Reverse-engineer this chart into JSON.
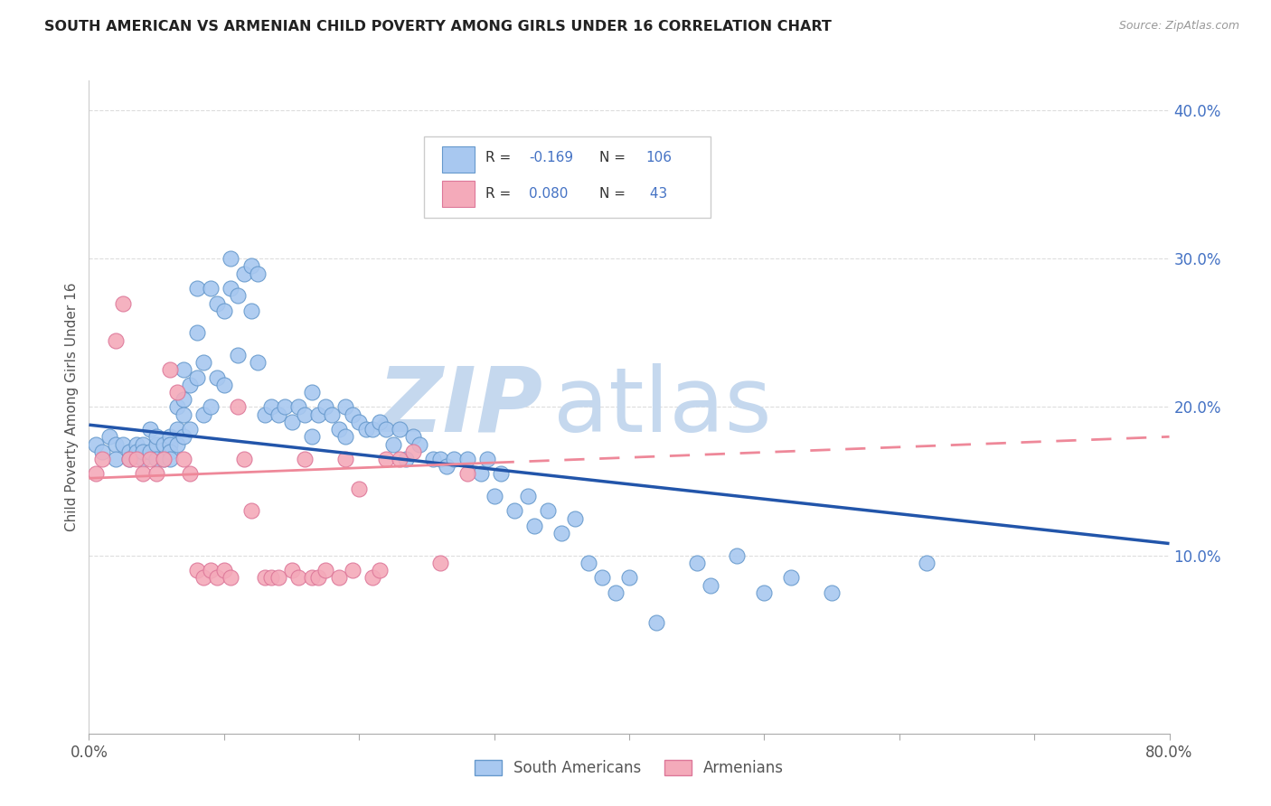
{
  "title": "SOUTH AMERICAN VS ARMENIAN CHILD POVERTY AMONG GIRLS UNDER 16 CORRELATION CHART",
  "source": "Source: ZipAtlas.com",
  "ylabel": "Child Poverty Among Girls Under 16",
  "xlim": [
    0.0,
    0.8
  ],
  "ylim": [
    -0.02,
    0.42
  ],
  "sa_color": "#A8C8F0",
  "sa_edge_color": "#6699CC",
  "arm_color": "#F4AABA",
  "arm_edge_color": "#DD7799",
  "sa_trend_color": "#2255AA",
  "arm_trend_color": "#EE8899",
  "sa_R": -0.169,
  "sa_N": 106,
  "arm_R": 0.08,
  "arm_N": 43,
  "watermark_zip": "ZIP",
  "watermark_atlas": "atlas",
  "watermark_color_zip": "#C5D8EE",
  "watermark_color_atlas": "#C5D8EE",
  "legend_label_sa": "South Americans",
  "legend_label_arm": "Armenians",
  "right_ytick_vals": [
    0.1,
    0.2,
    0.3,
    0.4
  ],
  "right_ytick_labels": [
    "10.0%",
    "20.0%",
    "30.0%",
    "40.0%"
  ],
  "right_tick_color": "#4472C4",
  "grid_color": "#DDDDDD",
  "sa_points_x": [
    0.005,
    0.01,
    0.015,
    0.02,
    0.02,
    0.025,
    0.03,
    0.03,
    0.035,
    0.035,
    0.04,
    0.04,
    0.04,
    0.045,
    0.045,
    0.05,
    0.05,
    0.05,
    0.055,
    0.055,
    0.06,
    0.06,
    0.06,
    0.06,
    0.065,
    0.065,
    0.065,
    0.07,
    0.07,
    0.07,
    0.07,
    0.075,
    0.075,
    0.08,
    0.08,
    0.08,
    0.085,
    0.085,
    0.09,
    0.09,
    0.095,
    0.095,
    0.1,
    0.1,
    0.105,
    0.105,
    0.11,
    0.11,
    0.115,
    0.12,
    0.12,
    0.125,
    0.125,
    0.13,
    0.135,
    0.14,
    0.145,
    0.15,
    0.155,
    0.16,
    0.165,
    0.165,
    0.17,
    0.175,
    0.18,
    0.185,
    0.19,
    0.19,
    0.195,
    0.2,
    0.205,
    0.21,
    0.215,
    0.22,
    0.225,
    0.23,
    0.235,
    0.24,
    0.245,
    0.255,
    0.26,
    0.265,
    0.27,
    0.28,
    0.29,
    0.295,
    0.3,
    0.305,
    0.315,
    0.325,
    0.33,
    0.34,
    0.35,
    0.36,
    0.37,
    0.38,
    0.39,
    0.4,
    0.42,
    0.45,
    0.46,
    0.48,
    0.5,
    0.52,
    0.55,
    0.62
  ],
  "sa_points_y": [
    0.175,
    0.17,
    0.18,
    0.175,
    0.165,
    0.175,
    0.17,
    0.165,
    0.175,
    0.17,
    0.175,
    0.165,
    0.17,
    0.185,
    0.17,
    0.175,
    0.165,
    0.18,
    0.175,
    0.165,
    0.18,
    0.175,
    0.17,
    0.165,
    0.2,
    0.185,
    0.175,
    0.225,
    0.205,
    0.195,
    0.18,
    0.215,
    0.185,
    0.28,
    0.25,
    0.22,
    0.23,
    0.195,
    0.28,
    0.2,
    0.27,
    0.22,
    0.265,
    0.215,
    0.3,
    0.28,
    0.275,
    0.235,
    0.29,
    0.295,
    0.265,
    0.29,
    0.23,
    0.195,
    0.2,
    0.195,
    0.2,
    0.19,
    0.2,
    0.195,
    0.21,
    0.18,
    0.195,
    0.2,
    0.195,
    0.185,
    0.2,
    0.18,
    0.195,
    0.19,
    0.185,
    0.185,
    0.19,
    0.185,
    0.175,
    0.185,
    0.165,
    0.18,
    0.175,
    0.165,
    0.165,
    0.16,
    0.165,
    0.165,
    0.155,
    0.165,
    0.14,
    0.155,
    0.13,
    0.14,
    0.12,
    0.13,
    0.115,
    0.125,
    0.095,
    0.085,
    0.075,
    0.085,
    0.055,
    0.095,
    0.08,
    0.1,
    0.075,
    0.085,
    0.075,
    0.095
  ],
  "arm_points_x": [
    0.005,
    0.01,
    0.02,
    0.025,
    0.03,
    0.035,
    0.04,
    0.045,
    0.05,
    0.055,
    0.06,
    0.065,
    0.07,
    0.075,
    0.08,
    0.085,
    0.09,
    0.095,
    0.1,
    0.105,
    0.11,
    0.115,
    0.12,
    0.13,
    0.135,
    0.14,
    0.15,
    0.155,
    0.16,
    0.165,
    0.17,
    0.175,
    0.185,
    0.19,
    0.195,
    0.2,
    0.21,
    0.215,
    0.22,
    0.23,
    0.24,
    0.26,
    0.28
  ],
  "arm_points_y": [
    0.155,
    0.165,
    0.245,
    0.27,
    0.165,
    0.165,
    0.155,
    0.165,
    0.155,
    0.165,
    0.225,
    0.21,
    0.165,
    0.155,
    0.09,
    0.085,
    0.09,
    0.085,
    0.09,
    0.085,
    0.2,
    0.165,
    0.13,
    0.085,
    0.085,
    0.085,
    0.09,
    0.085,
    0.165,
    0.085,
    0.085,
    0.09,
    0.085,
    0.165,
    0.09,
    0.145,
    0.085,
    0.09,
    0.165,
    0.165,
    0.17,
    0.095,
    0.155
  ],
  "sa_trend_x": [
    0.0,
    0.8
  ],
  "sa_trend_y": [
    0.188,
    0.108
  ],
  "arm_trend_x": [
    0.0,
    0.8
  ],
  "arm_trend_y": [
    0.152,
    0.18
  ]
}
